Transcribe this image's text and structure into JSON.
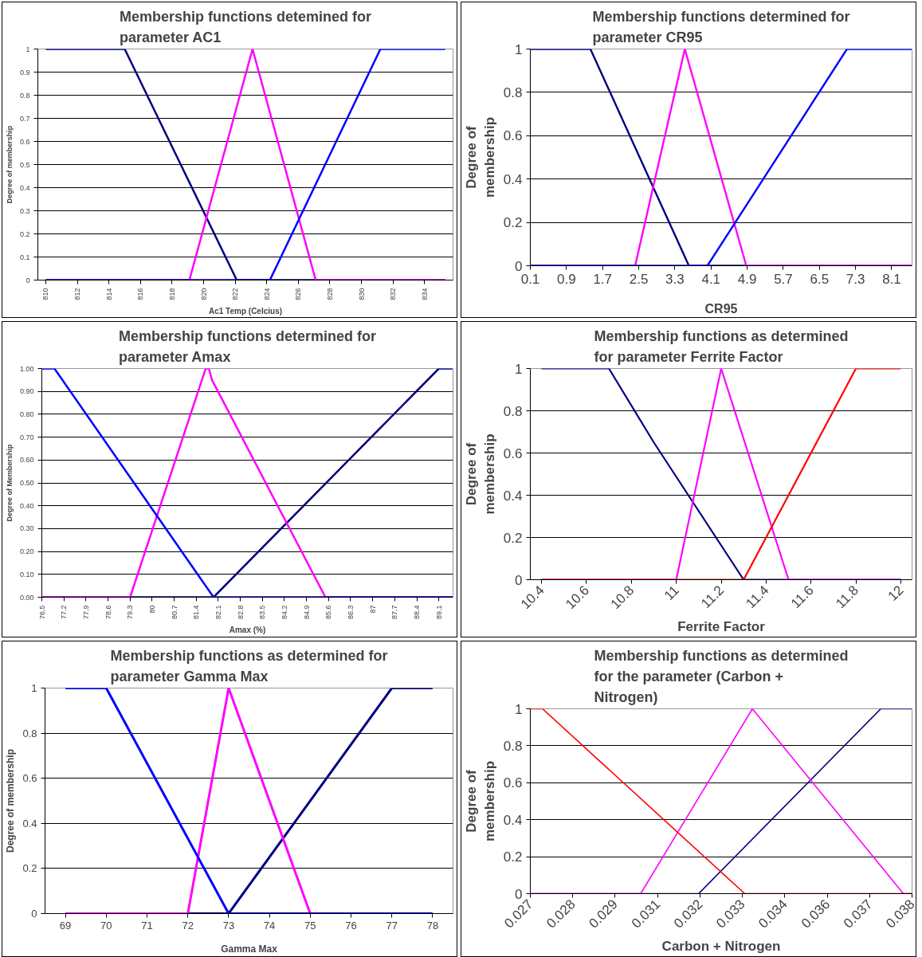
{
  "chart_data": [
    {
      "type": "line",
      "title": "Membership functions detemined for parameter AC1",
      "xlabel": "Ac1 Temp (Celcius)",
      "ylabel": "Degree of membership",
      "xlim": [
        809.5,
        835.8
      ],
      "xticks": [
        810,
        812,
        814,
        816,
        818,
        820,
        822,
        824,
        826,
        828,
        830,
        832,
        834
      ],
      "ylim": [
        0,
        1
      ],
      "yticks": [
        0,
        0.1,
        0.2,
        0.3,
        0.4,
        0.5,
        0.6,
        0.7,
        0.8,
        0.9,
        1
      ],
      "grid": "y",
      "series": [
        {
          "color": "#000080",
          "x": [
            810,
            815,
            822.1,
            835.3
          ],
          "values": [
            1,
            1,
            0,
            0
          ]
        },
        {
          "color": "#ff00ff",
          "x": [
            810,
            819.1,
            823.1,
            827.1,
            835.3
          ],
          "values": [
            0,
            0,
            1,
            0,
            0
          ]
        },
        {
          "color": "#0000ff",
          "x": [
            810,
            824.2,
            831.2,
            835.3
          ],
          "values": [
            0,
            0,
            1,
            1
          ]
        }
      ]
    },
    {
      "type": "line",
      "title": "Membership functions determined for parameter CR95",
      "xlabel": "CR95",
      "ylabel": "Degree of membership",
      "xlim": [
        0.1,
        8.55
      ],
      "xticks": [
        0.1,
        0.9,
        1.7,
        2.5,
        3.3,
        4.1,
        4.9,
        5.7,
        6.5,
        7.3,
        8.1
      ],
      "ylim": [
        0,
        1
      ],
      "yticks": [
        0,
        0.2,
        0.4,
        0.6,
        0.8,
        1
      ],
      "grid": "y",
      "series": [
        {
          "color": "#000080",
          "x": [
            0.1,
            1.43,
            3.61,
            8.54
          ],
          "values": [
            1,
            1,
            0,
            0
          ]
        },
        {
          "color": "#ff00ff",
          "x": [
            0.1,
            2.42,
            3.52,
            4.88,
            8.54
          ],
          "values": [
            0,
            0,
            1,
            0,
            0
          ]
        },
        {
          "color": "#0000ff",
          "x": [
            0.1,
            4.02,
            7.11,
            8.54
          ],
          "values": [
            0,
            0,
            1,
            1
          ]
        }
      ]
    },
    {
      "type": "line",
      "title": "Membership functions determined for parameter Amax",
      "xlabel": "Amax (%)",
      "ylabel": "Degree of Membership",
      "xlim": [
        76.5,
        89.55
      ],
      "xticks": [
        76.5,
        77.2,
        77.9,
        78.6,
        79.3,
        80,
        80.7,
        81.4,
        82.1,
        82.8,
        83.5,
        84.2,
        84.9,
        85.6,
        86.3,
        87,
        87.7,
        88.4,
        89.1
      ],
      "ylim": [
        0,
        1
      ],
      "yticks": [
        {
          "value": 0,
          "label": "0.00"
        },
        {
          "value": 0.1,
          "label": "0.10"
        },
        {
          "value": 0.2,
          "label": "0.20"
        },
        {
          "value": 0.3,
          "label": "0.30"
        },
        {
          "value": 0.4,
          "label": "0.40"
        },
        {
          "value": 0.5,
          "label": "0.50"
        },
        {
          "value": 0.6,
          "label": "0.60"
        },
        {
          "value": 0.7,
          "label": "0.70"
        },
        {
          "value": 0.8,
          "label": "0.80"
        },
        {
          "value": 0.9,
          "label": "0.90"
        },
        {
          "value": 1,
          "label": "1.00"
        }
      ],
      "grid": "y",
      "series": [
        {
          "color": "#000080",
          "x": [
            76.5,
            81.95,
            89.1,
            89.53
          ],
          "values": [
            0,
            0,
            1,
            1
          ]
        },
        {
          "color": "#ff00ff",
          "x": [
            76.5,
            79.3,
            81.7,
            81.8,
            81.9,
            85.5,
            89.53
          ],
          "values": [
            0,
            0,
            1,
            1,
            0.95,
            0,
            0
          ]
        },
        {
          "color": "#0000ff",
          "x": [
            76.5,
            76.9,
            81.95,
            89.53
          ],
          "values": [
            1,
            1,
            0,
            0
          ]
        }
      ]
    },
    {
      "type": "line",
      "title": "Membership functions as determined for parameter Ferrite Factor",
      "xlabel": "Ferrite Factor",
      "ylabel": "Degree of membership",
      "xlim": [
        10.35,
        12.05
      ],
      "xticks": [
        10.4,
        10.6,
        10.8,
        11,
        11.2,
        11.4,
        11.6,
        11.8,
        12
      ],
      "ylim": [
        0,
        1
      ],
      "yticks": [
        0,
        0.2,
        0.4,
        0.6,
        0.8,
        1
      ],
      "grid": "y",
      "series": [
        {
          "color": "#000080",
          "x": [
            10.4,
            10.7,
            10.9,
            11.3,
            12.0
          ],
          "values": [
            1,
            1,
            0.65,
            0,
            0
          ]
        },
        {
          "color": "#ff00ff",
          "x": [
            10.4,
            11.0,
            11.2,
            11.5,
            12.0
          ],
          "values": [
            0,
            0,
            1,
            0,
            0
          ]
        },
        {
          "color": "#ff0000",
          "x": [
            10.4,
            11.3,
            11.5,
            11.8,
            12.0
          ],
          "values": [
            0,
            0,
            0.4,
            1,
            1
          ]
        }
      ]
    },
    {
      "type": "line",
      "title": "Membership functions as determined for parameter Gamma Max",
      "xlabel": "Gamma Max",
      "ylabel": "Degree of membership",
      "xlim": [
        68.5,
        78.5
      ],
      "xticks": [
        69,
        70,
        71,
        72,
        73,
        74,
        75,
        76,
        77,
        78
      ],
      "ylim": [
        0,
        1
      ],
      "yticks": [
        0,
        0.2,
        0.4,
        0.6,
        0.8,
        1
      ],
      "grid": "y",
      "series": [
        {
          "color": "#000080",
          "x": [
            69,
            73,
            77,
            78
          ],
          "values": [
            0,
            0,
            1,
            1
          ]
        },
        {
          "color": "#ff00ff",
          "x": [
            69,
            72,
            73,
            75,
            78
          ],
          "values": [
            0,
            0,
            1,
            0,
            0
          ]
        },
        {
          "color": "#0000ff",
          "x": [
            69,
            70,
            73,
            78
          ],
          "values": [
            1,
            1,
            0,
            0
          ]
        }
      ]
    },
    {
      "type": "line",
      "title": "Membership functions as determined for the parameter (Carbon + Nitrogen)",
      "xlabel": "Carbon + Nitrogen",
      "ylabel": "Degree of membership",
      "xlim": [
        0.027,
        0.038
      ],
      "xticks": [
        {
          "value": 0.027,
          "label": "0.027"
        },
        {
          "value": 0.02822,
          "label": "0.028"
        },
        {
          "value": 0.02944,
          "label": "0.029"
        },
        {
          "value": 0.03067,
          "label": "0.031"
        },
        {
          "value": 0.03189,
          "label": "0.032"
        },
        {
          "value": 0.03311,
          "label": "0.033"
        },
        {
          "value": 0.03433,
          "label": "0.034"
        },
        {
          "value": 0.03556,
          "label": "0.036"
        },
        {
          "value": 0.03678,
          "label": "0.037"
        },
        {
          "value": 0.038,
          "label": "0.038"
        }
      ],
      "ylim": [
        0,
        1
      ],
      "yticks": [
        0,
        0.2,
        0.4,
        0.6,
        0.8,
        1
      ],
      "grid": "y",
      "series": [
        {
          "color": "#000080",
          "x": [
            0.027,
            0.03185,
            0.0371,
            0.038
          ],
          "values": [
            0,
            0,
            1,
            1
          ]
        },
        {
          "color": "#ff00ff",
          "x": [
            0.027,
            0.03018,
            0.0334,
            0.03775,
            0.038
          ],
          "values": [
            0,
            0,
            1,
            0,
            0
          ]
        },
        {
          "color": "#ff0000",
          "x": [
            0.027,
            0.02735,
            0.03318,
            0.038
          ],
          "values": [
            1,
            1,
            0,
            0
          ]
        }
      ]
    }
  ]
}
